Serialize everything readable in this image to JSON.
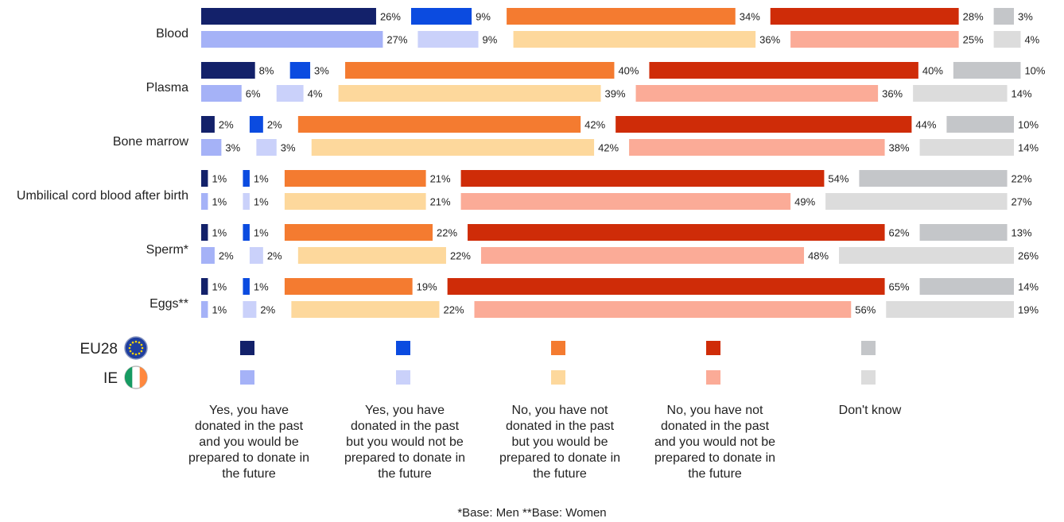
{
  "chart_data": {
    "type": "bar",
    "orientation": "horizontal-segmented",
    "categories": [
      "Blood",
      "Plasma",
      "Bone marrow",
      "Umbilical cord blood after birth",
      "Sperm*",
      "Eggs**"
    ],
    "groups": [
      {
        "name": "EU28",
        "icon": "eu-flag-icon"
      },
      {
        "name": "IE",
        "icon": "ireland-flag-icon"
      }
    ],
    "answers": [
      "Yes, you have donated in the past and you would be prepared to donate in the future",
      "Yes, you have donated in the past but you would not be prepared to donate in the future",
      "No, you have not donated in the past but you would be prepared to donate in the future",
      "No, you have not donated in the past and you would not be prepared to donate in the future",
      "Don't know"
    ],
    "answer_labels": [
      [
        "Yes, you have",
        "donated in the past",
        "and you would be",
        "prepared to donate in",
        "the future"
      ],
      [
        "Yes, you have",
        "donated in the past",
        "but you would not be",
        "prepared to donate in",
        "the future"
      ],
      [
        "No, you have not",
        "donated in the past",
        "but you would be",
        "prepared to donate in",
        "the future"
      ],
      [
        "No, you have not",
        "donated in the past",
        "and you would not be",
        "prepared to donate in",
        "the future"
      ],
      [
        "Don't know"
      ]
    ],
    "colors": {
      "EU28": [
        "#13216a",
        "#0b4be0",
        "#f47b30",
        "#cf2c08",
        "#c4c6c9"
      ],
      "IE": [
        "#a5b2f7",
        "#cad1fa",
        "#fdd89c",
        "#fbab97",
        "#dcdcdc"
      ]
    },
    "unit": "%",
    "values": {
      "EU28": [
        [
          26,
          9,
          34,
          28,
          3
        ],
        [
          8,
          3,
          40,
          40,
          10
        ],
        [
          2,
          2,
          42,
          44,
          10
        ],
        [
          1,
          1,
          21,
          54,
          22
        ],
        [
          1,
          1,
          22,
          62,
          13
        ],
        [
          1,
          1,
          19,
          65,
          14
        ]
      ],
      "IE": [
        [
          27,
          9,
          36,
          25,
          4
        ],
        [
          6,
          4,
          39,
          36,
          14
        ],
        [
          3,
          3,
          42,
          38,
          14
        ],
        [
          1,
          1,
          21,
          49,
          27
        ],
        [
          2,
          2,
          22,
          48,
          26
        ],
        [
          1,
          2,
          22,
          56,
          19
        ]
      ]
    },
    "footnote": "*Base: Men **Base: Women"
  }
}
